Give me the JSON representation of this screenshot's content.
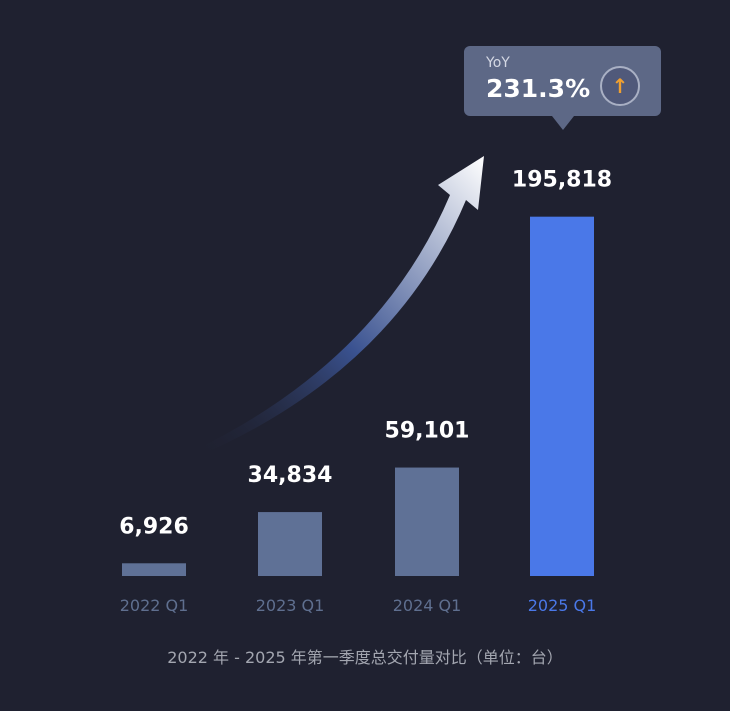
{
  "chart_data": {
    "type": "bar",
    "categories": [
      "2022 Q1",
      "2023 Q1",
      "2024 Q1",
      "2025 Q1"
    ],
    "values": [
      6926,
      34834,
      59101,
      195818
    ],
    "value_labels": [
      "6,926",
      "34,834",
      "59,101",
      "195,818"
    ],
    "ylim": [
      0,
      200000
    ],
    "highlight_index": 3,
    "caption": "2022 年 - 2025 年第一季度总交付量对比（单位：台）",
    "annotation": {
      "label": "YoY",
      "value": "231.3%",
      "icon": "arrow-up-icon"
    },
    "colors": {
      "bar": "#5f7196",
      "bar_highlight": "#4a78e8",
      "background": "#1f2130",
      "tooltip": "#5d6886",
      "icon_arrow": "#f0a030"
    },
    "grid": false,
    "legend": "none"
  }
}
